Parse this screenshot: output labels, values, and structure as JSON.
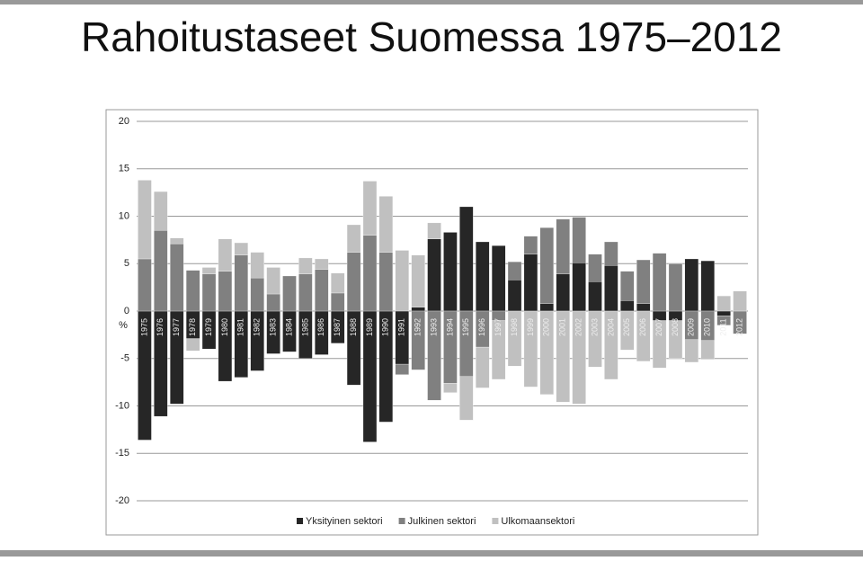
{
  "title": "Rahoitustaseet Suomessa 1975–2012",
  "chart_data": {
    "type": "bar",
    "stacked": true,
    "y_label": "%",
    "categories": [
      "1975",
      "1976",
      "1977",
      "1978",
      "1979",
      "1980",
      "1981",
      "1982",
      "1983",
      "1984",
      "1985",
      "1986",
      "1987",
      "1988",
      "1989",
      "1990",
      "1991",
      "1992",
      "1993",
      "1994",
      "1995",
      "1996",
      "1997",
      "1998",
      "1999",
      "2000",
      "2001",
      "2002",
      "2003",
      "2004",
      "2005",
      "2006",
      "2007",
      "2008",
      "2009",
      "2010",
      "2011",
      "2012"
    ],
    "series": [
      {
        "name": "Yksityinen sektori",
        "color": "#262626",
        "values": [
          -13.6,
          -11.1,
          -9.8,
          -2.9,
          -4.0,
          -7.4,
          -7.0,
          -6.3,
          -4.5,
          -4.3,
          -5.0,
          -4.6,
          -3.4,
          -7.8,
          -13.8,
          -11.7,
          -5.6,
          0.4,
          7.6,
          8.3,
          11.0,
          7.3,
          6.9,
          3.3,
          6.0,
          0.8,
          3.9,
          5.1,
          3.1,
          4.8,
          1.1,
          0.8,
          -1.0,
          -1.0,
          5.5,
          5.3,
          -0.5,
          0
        ]
      },
      {
        "name": "Julkinen sektori",
        "color": "#808080",
        "values": [
          5.5,
          8.5,
          7.1,
          4.3,
          3.9,
          4.2,
          5.9,
          3.5,
          1.8,
          3.7,
          3.9,
          4.4,
          1.9,
          6.2,
          8.0,
          6.2,
          -1.1,
          -6.2,
          -9.4,
          -7.6,
          -6.9,
          -3.8,
          -1.0,
          1.9,
          1.9,
          8.0,
          5.8,
          4.8,
          2.9,
          2.5,
          3.1,
          4.6,
          6.1,
          5.0,
          -3.0,
          -3.1,
          -1.0,
          -2.4
        ]
      },
      {
        "name": "Ulkomaansektori",
        "color": "#c0c0c0",
        "values": [
          8.3,
          4.1,
          0.6,
          -1.3,
          0.7,
          3.4,
          1.3,
          2.7,
          2.8,
          0,
          1.7,
          1.1,
          2.1,
          2.9,
          5.7,
          5.9,
          6.4,
          5.5,
          1.7,
          -1.0,
          -4.6,
          -4.3,
          -6.2,
          -5.8,
          -8.0,
          -8.8,
          -9.6,
          -9.8,
          -5.9,
          -7.2,
          -4.1,
          -5.3,
          -5.0,
          -4.0,
          -2.4,
          -2.0,
          1.6,
          2.1
        ]
      }
    ],
    "ylim": [
      -20,
      20
    ],
    "yticks": [
      -20,
      -15,
      -10,
      -5,
      0,
      5,
      10,
      15,
      20
    ],
    "grid": true,
    "legend": "bottom"
  }
}
